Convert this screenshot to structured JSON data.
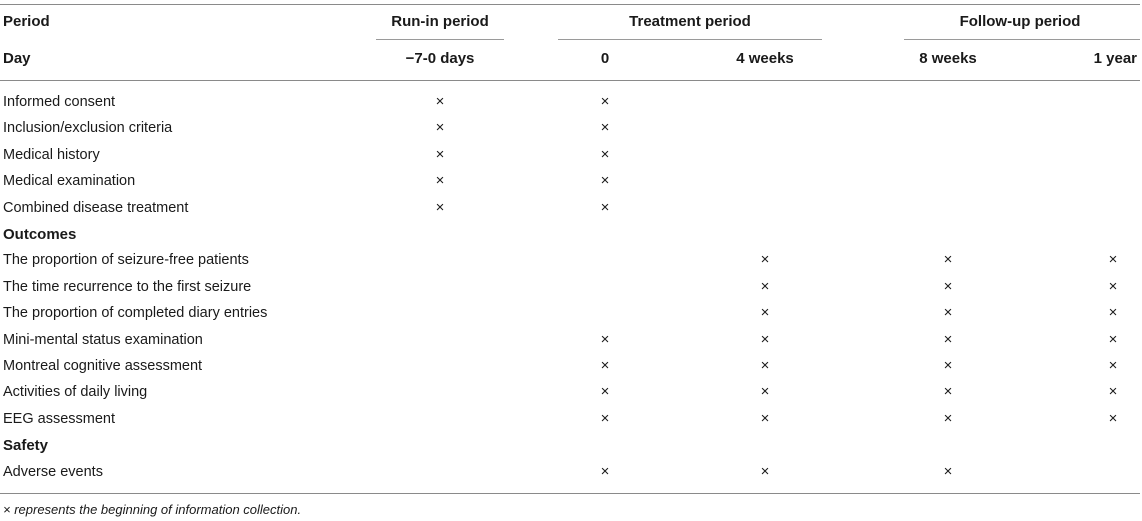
{
  "header": {
    "period_label": "Period",
    "day_label": "Day",
    "periods": [
      "Run-in period",
      "Treatment period",
      "Follow-up period"
    ],
    "days": [
      "−7-0 days",
      "0",
      "4 weeks",
      "8 weeks",
      "1 year"
    ]
  },
  "mark": "×",
  "rows": [
    {
      "label": "Informed consent",
      "section": false,
      "marks": [
        true,
        true,
        false,
        false,
        false
      ]
    },
    {
      "label": "Inclusion/exclusion criteria",
      "section": false,
      "marks": [
        true,
        true,
        false,
        false,
        false
      ]
    },
    {
      "label": "Medical history",
      "section": false,
      "marks": [
        true,
        true,
        false,
        false,
        false
      ]
    },
    {
      "label": "Medical examination",
      "section": false,
      "marks": [
        true,
        true,
        false,
        false,
        false
      ]
    },
    {
      "label": "Combined disease treatment",
      "section": false,
      "marks": [
        true,
        true,
        false,
        false,
        false
      ]
    },
    {
      "label": "Outcomes",
      "section": true,
      "marks": [
        false,
        false,
        false,
        false,
        false
      ]
    },
    {
      "label": "The proportion of seizure-free patients",
      "section": false,
      "marks": [
        false,
        false,
        true,
        true,
        true
      ]
    },
    {
      "label": "The time recurrence to the first seizure",
      "section": false,
      "marks": [
        false,
        false,
        true,
        true,
        true
      ]
    },
    {
      "label": "The proportion of completed diary entries",
      "section": false,
      "marks": [
        false,
        false,
        true,
        true,
        true
      ]
    },
    {
      "label": "Mini-mental status examination",
      "section": false,
      "marks": [
        false,
        true,
        true,
        true,
        true
      ]
    },
    {
      "label": "Montreal cognitive assessment",
      "section": false,
      "marks": [
        false,
        true,
        true,
        true,
        true
      ]
    },
    {
      "label": "Activities of daily living",
      "section": false,
      "marks": [
        false,
        true,
        true,
        true,
        true
      ]
    },
    {
      "label": "EEG assessment",
      "section": false,
      "marks": [
        false,
        true,
        true,
        true,
        true
      ]
    },
    {
      "label": "Safety",
      "section": true,
      "marks": [
        false,
        false,
        false,
        false,
        false
      ]
    },
    {
      "label": "Adverse events",
      "section": false,
      "marks": [
        false,
        true,
        true,
        true,
        false
      ]
    }
  ],
  "footnote": "× represents the beginning of information collection."
}
